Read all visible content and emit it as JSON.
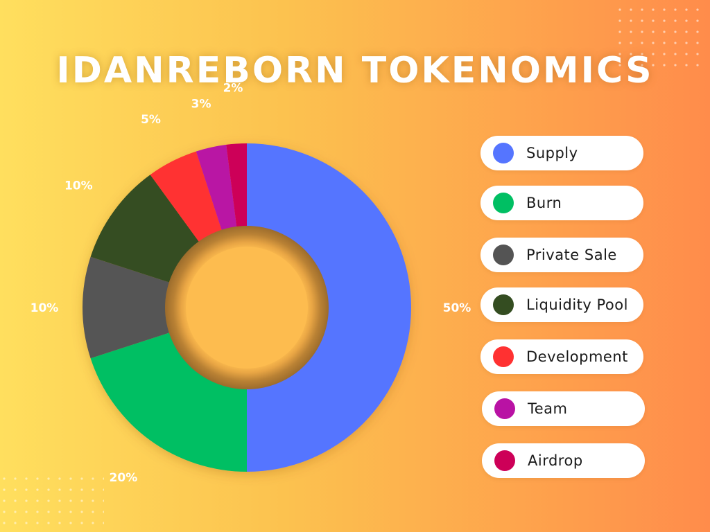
{
  "title": "IDANREBORN TOKENOMICS",
  "chart_data": {
    "type": "pie",
    "style": "donut",
    "categories": [
      "Supply",
      "Burn",
      "Private Sale",
      "Liquidity Pool",
      "Development",
      "Team",
      "Airdrop"
    ],
    "values": [
      50,
      20,
      10,
      10,
      5,
      3,
      2
    ],
    "value_labels": [
      "50%",
      "20%",
      "10%",
      "10%",
      "5%",
      "3%",
      "2%"
    ],
    "colors": [
      "#5575ff",
      "#00bf63",
      "#545454",
      "#344d21",
      "#ff3131",
      "#b912a4",
      "#cd0058"
    ],
    "legend_position": "right"
  },
  "legend": [
    {
      "label": "Supply",
      "color": "#5575ff"
    },
    {
      "label": "Burn",
      "color": "#00bf63"
    },
    {
      "label": "Private Sale",
      "color": "#545454"
    },
    {
      "label": "Liquidity Pool",
      "color": "#344d21"
    },
    {
      "label": "Development",
      "color": "#ff3131"
    },
    {
      "label": "Team",
      "color": "#b912a4"
    },
    {
      "label": "Airdrop",
      "color": "#cd0058"
    }
  ]
}
